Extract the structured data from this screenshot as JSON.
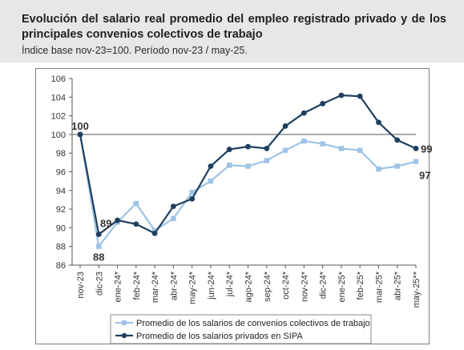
{
  "header": {
    "title": "Evolución del salario real promedio del empleo registrado privado y de los principales convenios colectivos de trabajo",
    "subtitle": "Índice base nov-23=100. Período nov-23 / may-25."
  },
  "chart_data": {
    "type": "line",
    "categories": [
      "nov-23",
      "dic-23",
      "ene-24*",
      "feb-24*",
      "mar-24*",
      "abr-24*",
      "may-24*",
      "jun-24*",
      "jul-24*",
      "ago-24*",
      "sep-24*",
      "oct-24*",
      "nov-24*",
      "dic-24*",
      "ene-25*",
      "feb-25*",
      "mar-25*",
      "abr-25*",
      "may-25**"
    ],
    "ylim": [
      86,
      106
    ],
    "yticks": [
      86,
      88,
      90,
      92,
      94,
      96,
      98,
      100,
      102,
      104,
      106
    ],
    "reference_line": 100,
    "series": [
      {
        "name": "Promedio de los salarios de convenios colectivos de trabajo",
        "color": "#9dc3e6",
        "marker": "square",
        "values": [
          100,
          88.0,
          90.6,
          92.6,
          89.7,
          91.0,
          93.8,
          95.0,
          96.7,
          96.6,
          97.2,
          98.3,
          99.3,
          99.0,
          98.5,
          98.3,
          96.3,
          96.6,
          97.1
        ]
      },
      {
        "name": "Promedio de los salarios privados en SIPA",
        "color": "#1f3f5f",
        "marker": "circle",
        "values": [
          100,
          89.3,
          90.8,
          90.4,
          89.4,
          92.3,
          93.1,
          96.6,
          98.4,
          98.7,
          98.5,
          100.9,
          102.3,
          103.3,
          104.2,
          104.1,
          101.3,
          99.4,
          98.5
        ]
      }
    ],
    "data_labels": [
      {
        "text": "100",
        "series": 1,
        "index": 0
      },
      {
        "text": "89",
        "series": 1,
        "index": 1
      },
      {
        "text": "88",
        "series": 0,
        "index": 1
      },
      {
        "text": "99",
        "series": 1,
        "index": 18
      },
      {
        "text": "97",
        "series": 0,
        "index": 18
      }
    ],
    "legend_placement": "bottom"
  }
}
